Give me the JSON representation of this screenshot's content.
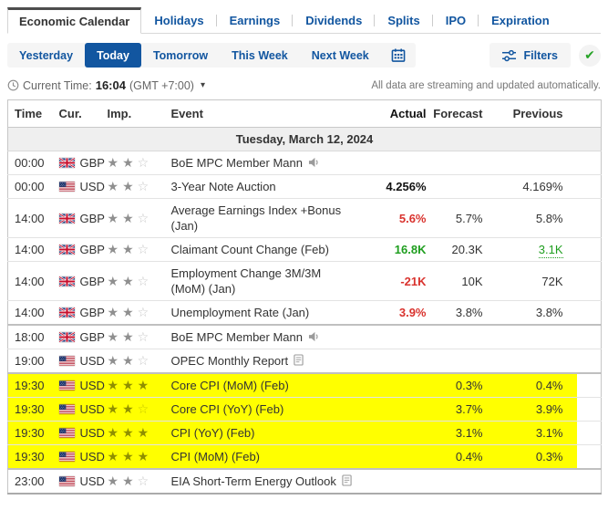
{
  "tabs": {
    "items": [
      "Economic Calendar",
      "Holidays",
      "Earnings",
      "Dividends",
      "Splits",
      "IPO",
      "Expiration"
    ],
    "active": "Economic Calendar"
  },
  "toolbar": {
    "ranges": [
      "Yesterday",
      "Today",
      "Tomorrow",
      "This Week",
      "Next Week"
    ],
    "active_range": "Today",
    "filters_label": "Filters",
    "icons": [
      "calendar-icon",
      "filters-icon",
      "check-icon"
    ]
  },
  "statusbar": {
    "current_time_label": "Current Time:",
    "current_time": "16:04",
    "timezone": "(GMT +7:00)",
    "streaming_note": "All data are streaming and updated automatically."
  },
  "colors": {
    "accent_blue": "#1256a0",
    "highlight_yellow": "#ffff00",
    "negative_red": "#d9332e",
    "positive_green": "#1f9e1f"
  },
  "table": {
    "columns": [
      "Time",
      "Cur.",
      "Imp.",
      "Event",
      "Actual",
      "Forecast",
      "Previous"
    ],
    "date_header": "Tuesday, March 12, 2024",
    "rows": [
      {
        "time": "00:00",
        "country": "GB",
        "currency": "GBP",
        "importance": 2,
        "event": "BoE MPC Member Mann",
        "icon": "speaker",
        "actual": "",
        "forecast": "",
        "previous": "",
        "highlighted": false
      },
      {
        "time": "00:00",
        "country": "US",
        "currency": "USD",
        "importance": 2,
        "event": "3-Year Note Auction",
        "icon": null,
        "actual": "4.256%",
        "actual_color": "",
        "forecast": "",
        "previous": "4.169%",
        "highlighted": false
      },
      {
        "time": "14:00",
        "country": "GB",
        "currency": "GBP",
        "importance": 2,
        "event": "Average Earnings Index +Bonus (Jan)",
        "icon": null,
        "actual": "5.6%",
        "actual_color": "red",
        "forecast": "5.7%",
        "previous": "5.8%",
        "highlighted": false
      },
      {
        "time": "14:00",
        "country": "GB",
        "currency": "GBP",
        "importance": 2,
        "event": "Claimant Count Change (Feb)",
        "icon": null,
        "actual": "16.8K",
        "actual_color": "green",
        "forecast": "20.3K",
        "previous": "3.1K",
        "previous_color": "green",
        "previous_revised": true,
        "highlighted": false
      },
      {
        "time": "14:00",
        "country": "GB",
        "currency": "GBP",
        "importance": 2,
        "event": "Employment Change 3M/3M (MoM) (Jan)",
        "icon": null,
        "actual": "-21K",
        "actual_color": "red",
        "forecast": "10K",
        "previous": "72K",
        "highlighted": false
      },
      {
        "time": "14:00",
        "country": "GB",
        "currency": "GBP",
        "importance": 2,
        "event": "Unemployment Rate (Jan)",
        "icon": null,
        "actual": "3.9%",
        "actual_color": "red",
        "forecast": "3.8%",
        "previous": "3.8%",
        "highlighted": false
      },
      {
        "time": "18:00",
        "country": "GB",
        "currency": "GBP",
        "importance": 2,
        "event": "BoE MPC Member Mann",
        "icon": "speaker",
        "actual": "",
        "forecast": "",
        "previous": "",
        "highlighted": false,
        "group_start": true
      },
      {
        "time": "19:00",
        "country": "US",
        "currency": "USD",
        "importance": 2,
        "event": "OPEC Monthly Report",
        "icon": "report",
        "actual": "",
        "forecast": "",
        "previous": "",
        "highlighted": false
      },
      {
        "time": "19:30",
        "country": "US",
        "currency": "USD",
        "importance": 3,
        "event": "Core CPI (MoM) (Feb)",
        "icon": null,
        "actual": "",
        "forecast": "0.3%",
        "previous": "0.4%",
        "highlighted": true,
        "group_start": true
      },
      {
        "time": "19:30",
        "country": "US",
        "currency": "USD",
        "importance": 2,
        "event": "Core CPI (YoY) (Feb)",
        "icon": null,
        "actual": "",
        "forecast": "3.7%",
        "previous": "3.9%",
        "highlighted": true
      },
      {
        "time": "19:30",
        "country": "US",
        "currency": "USD",
        "importance": 3,
        "event": "CPI (YoY) (Feb)",
        "icon": null,
        "actual": "",
        "forecast": "3.1%",
        "previous": "3.1%",
        "highlighted": true
      },
      {
        "time": "19:30",
        "country": "US",
        "currency": "USD",
        "importance": 3,
        "event": "CPI (MoM) (Feb)",
        "icon": null,
        "actual": "",
        "forecast": "0.4%",
        "previous": "0.3%",
        "highlighted": true
      },
      {
        "time": "23:00",
        "country": "US",
        "currency": "USD",
        "importance": 2,
        "event": "EIA Short-Term Energy Outlook",
        "icon": "report",
        "actual": "",
        "forecast": "",
        "previous": "",
        "highlighted": false,
        "group_start": true
      }
    ]
  }
}
